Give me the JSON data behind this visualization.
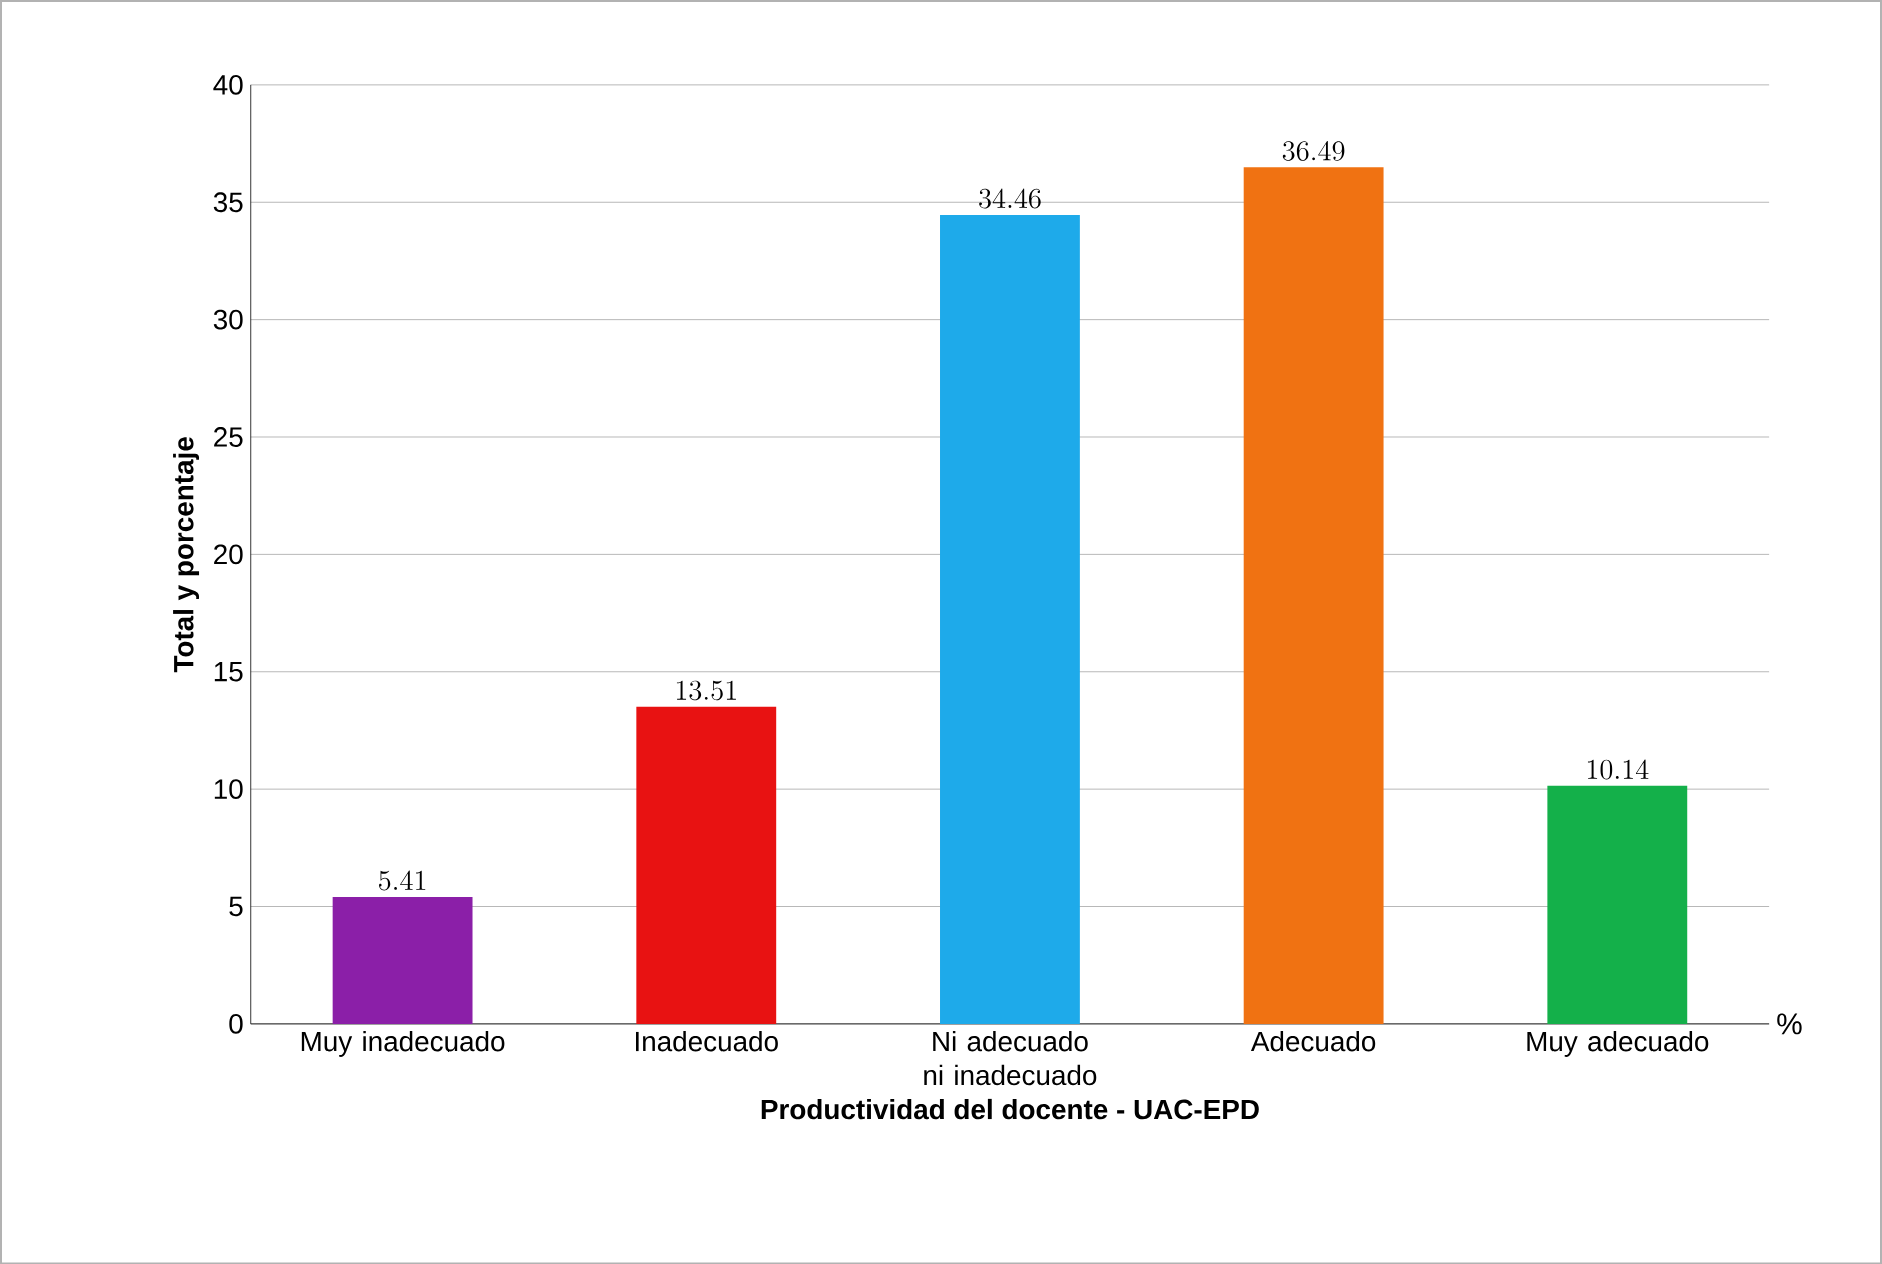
{
  "chart_data": {
    "type": "bar",
    "xlabel": "Productividad del docente - UAC-EPD",
    "ylabel": "Total y porcentaje",
    "categories": [
      "Muy inadecuado",
      "Inadecuado",
      "Ni adecuado ni inadecuado",
      "Adecuado",
      "Muy adecuado"
    ],
    "values": [
      5.41,
      13.51,
      34.46,
      36.49,
      10.14
    ],
    "colors": [
      "#8b1fa8",
      "#e81212",
      "#1eaaea",
      "#f07212",
      "#14b04a"
    ],
    "ylim": [
      0,
      40
    ],
    "yticks": [
      0,
      5,
      10,
      15,
      20,
      25,
      30,
      35,
      40
    ],
    "grid": "y",
    "data_labels": true,
    "annotations": [
      "%"
    ]
  }
}
